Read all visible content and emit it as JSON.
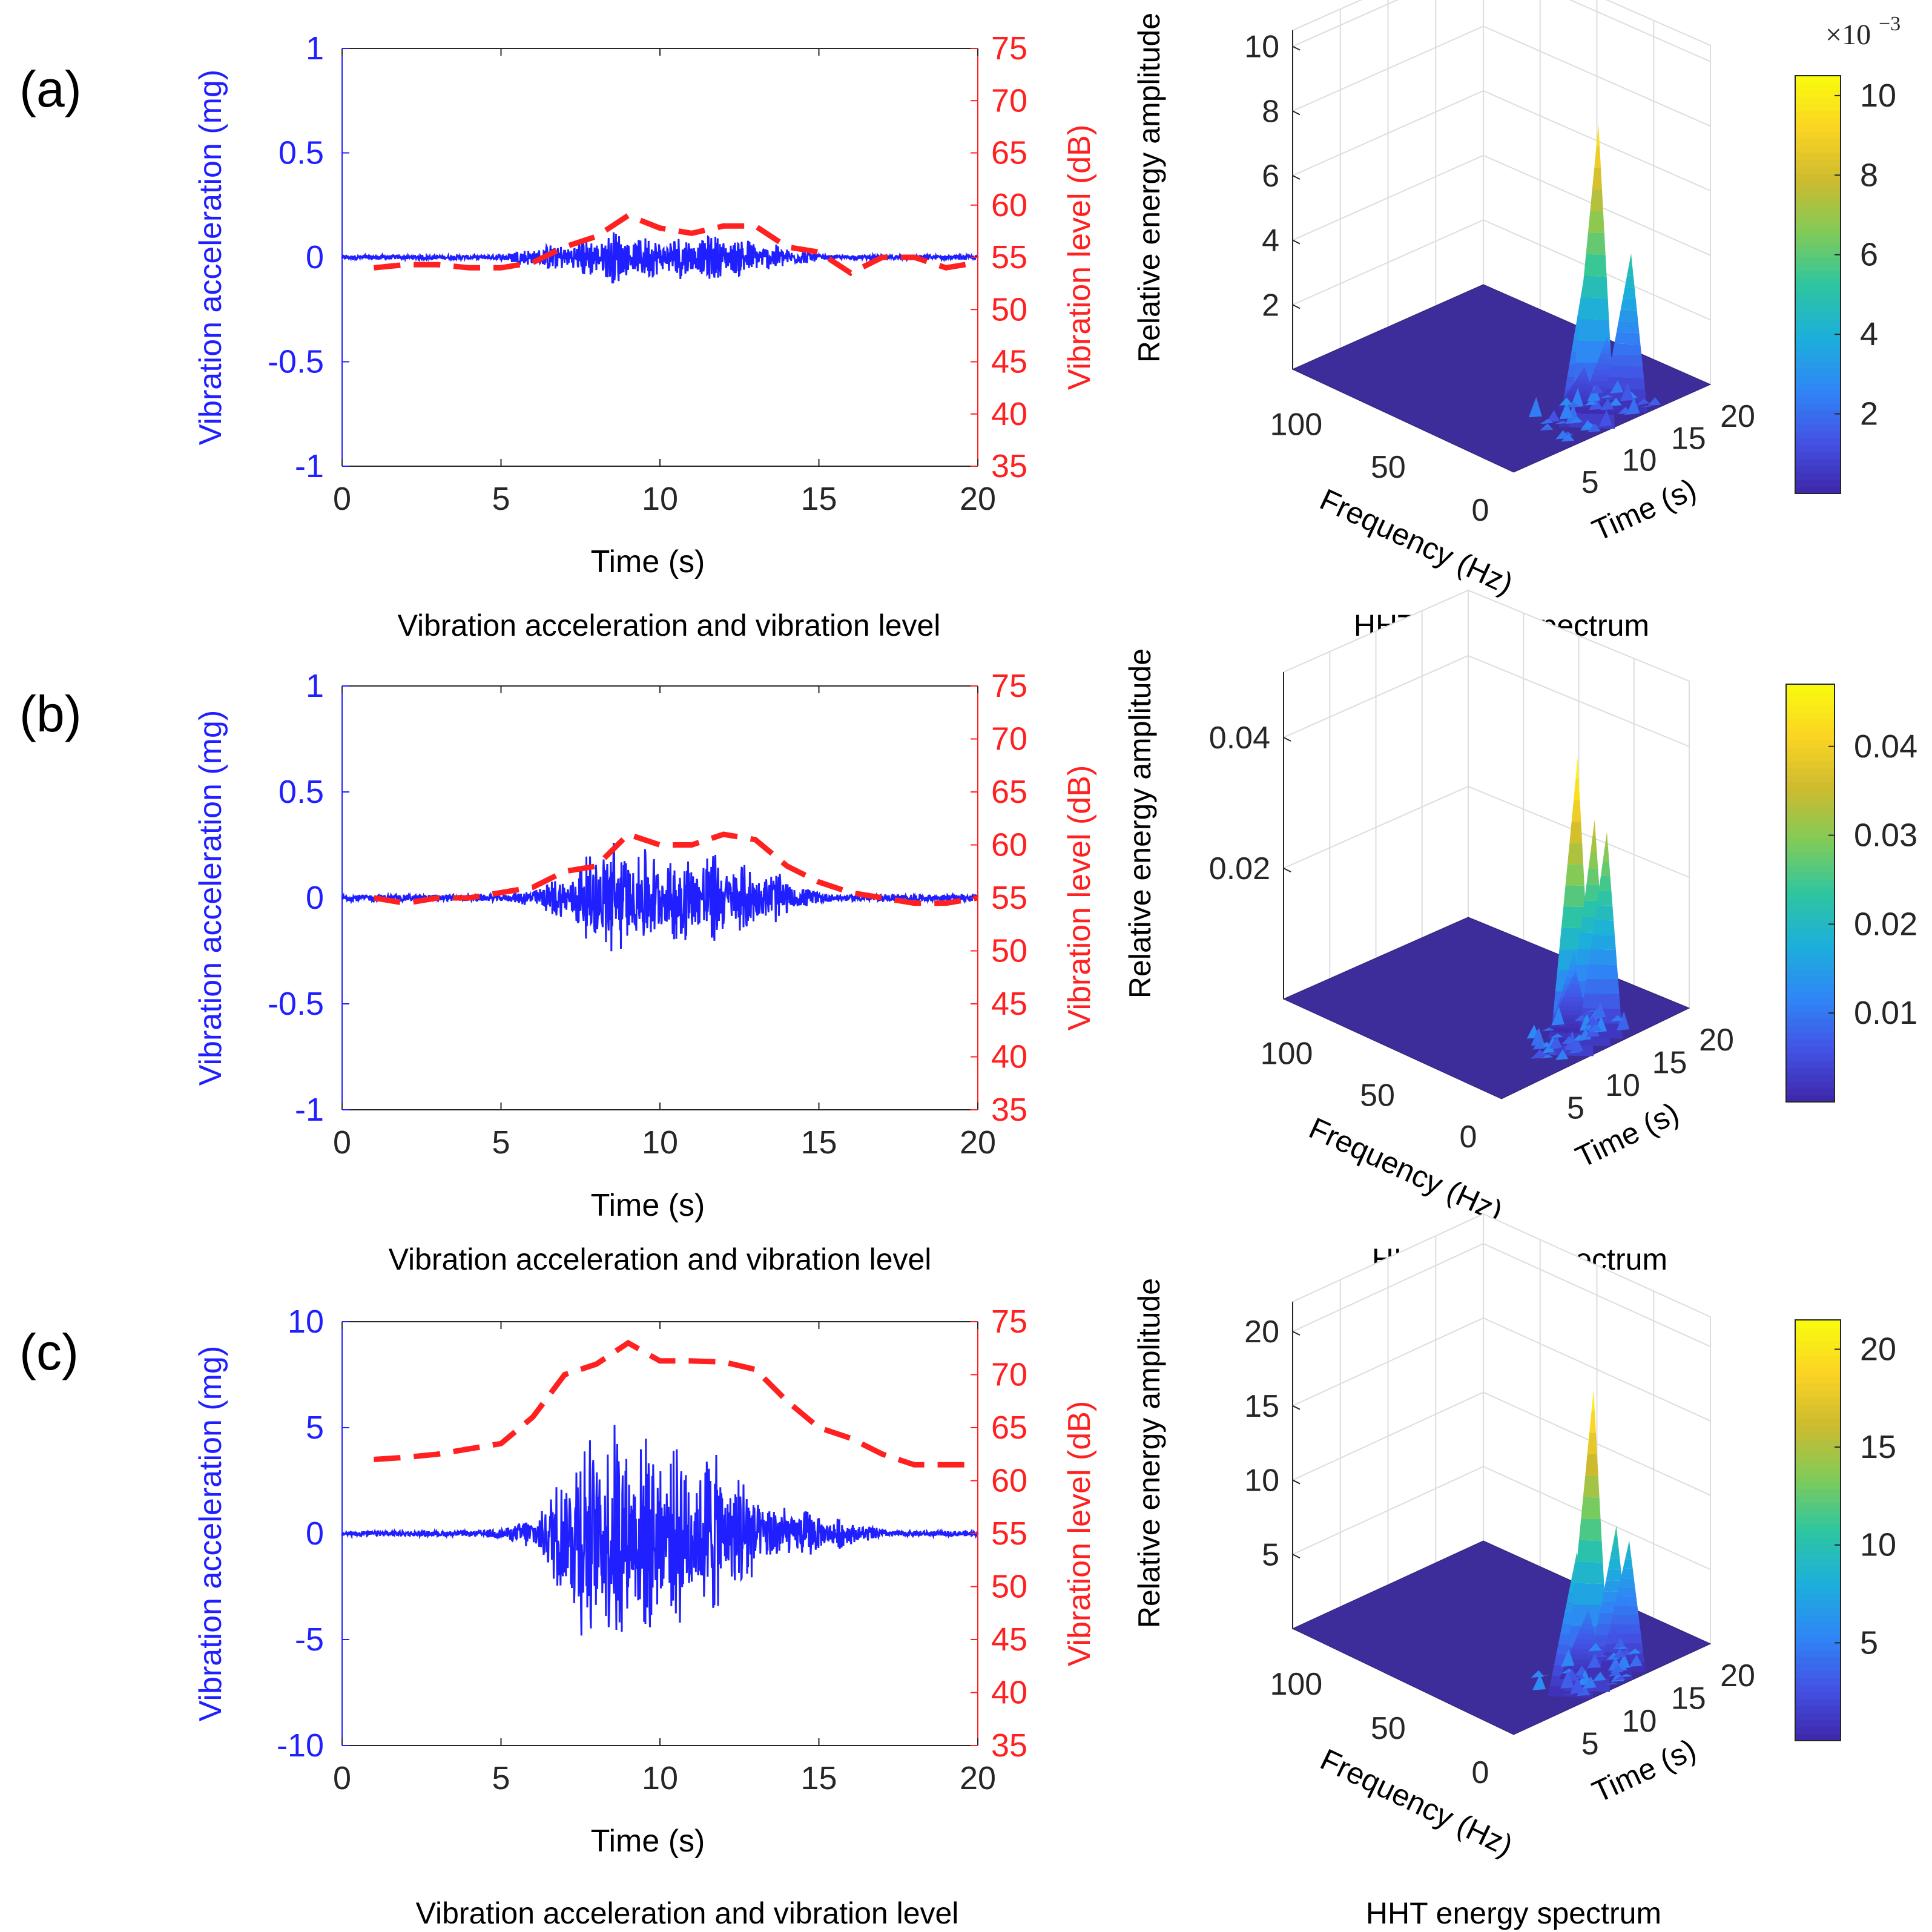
{
  "figure": {
    "background": "#ffffff",
    "colors": {
      "acceleration": "#1f1fff",
      "level": "#ff2020",
      "axis": "#262626",
      "grid": "#dddddd",
      "surface_base": "#3d2d9a",
      "colormap": [
        "#3e26a8",
        "#4352e5",
        "#2f86f6",
        "#1cafdb",
        "#2ec6a0",
        "#80cb58",
        "#cdbb2f",
        "#fbd424",
        "#f9fb0e"
      ]
    }
  },
  "panels": [
    {
      "label": "(a)",
      "line_caption": "Vibration acceleration and vibration level",
      "hht_caption": "HHT energy spectrum"
    },
    {
      "label": "(b)",
      "line_caption": "Vibration acceleration and vibration level",
      "hht_caption": "HHT energy spectrum"
    },
    {
      "label": "(c)",
      "line_caption": "Vibration acceleration and vibration level",
      "hht_caption": "HHT energy spectrum"
    }
  ],
  "chart_data": [
    {
      "type": "line",
      "panel": "(a)",
      "title": "Vibration acceleration and vibration level",
      "xlabel": "Time (s)",
      "ylabel_left": "Vibration acceleration (mg)",
      "ylabel_right": "Vibration level (dB)",
      "xlim": [
        0,
        20
      ],
      "ylim_left": [
        -1,
        1
      ],
      "ylim_right": [
        35,
        75
      ],
      "x_ticks": [
        0,
        5,
        10,
        15,
        20
      ],
      "y_ticks_left": [
        -1,
        -0.5,
        0,
        0.5,
        1
      ],
      "y_ticks_right": [
        35,
        40,
        45,
        50,
        55,
        60,
        65,
        70,
        75
      ],
      "grid": false,
      "series": [
        {
          "name": "Vibration acceleration",
          "axis": "left",
          "style": "solid",
          "noise_level": 0.01,
          "envelope": [
            [
              6,
              0.04
            ],
            [
              7.5,
              0.08
            ],
            [
              8.5,
              0.12
            ],
            [
              9.5,
              0.09
            ],
            [
              11.5,
              0.1
            ],
            [
              12.5,
              0.09
            ],
            [
              14,
              0.04
            ]
          ]
        },
        {
          "name": "Vibration level",
          "axis": "right",
          "style": "dashed",
          "x": [
            1,
            2,
            3,
            4,
            5,
            6,
            7,
            8,
            9,
            10,
            11,
            12,
            13,
            14,
            15,
            16,
            17,
            18,
            19,
            20
          ],
          "values": [
            54,
            54.3,
            54.3,
            54,
            54,
            54.5,
            56,
            57,
            59,
            57.8,
            57.3,
            58,
            58,
            56,
            55.5,
            53.5,
            55,
            55,
            54,
            54.5
          ]
        }
      ]
    },
    {
      "type": "line",
      "panel": "(b)",
      "title": "Vibration acceleration and vibration level",
      "xlabel": "Time (s)",
      "ylabel_left": "Vibration acceleration (mg)",
      "ylabel_right": "Vibration level (dB)",
      "xlim": [
        0,
        20
      ],
      "ylim_left": [
        -1,
        1
      ],
      "ylim_right": [
        35,
        75
      ],
      "x_ticks": [
        0,
        5,
        10,
        15,
        20
      ],
      "y_ticks_left": [
        -1,
        -0.5,
        0,
        0.5,
        1
      ],
      "y_ticks_right": [
        35,
        40,
        45,
        50,
        55,
        60,
        65,
        70,
        75
      ],
      "grid": false,
      "series": [
        {
          "name": "Vibration acceleration",
          "axis": "left",
          "style": "solid",
          "noise_level": 0.015,
          "envelope": [
            [
              6.5,
              0.06
            ],
            [
              7.5,
              0.15
            ],
            [
              8.3,
              0.3
            ],
            [
              9,
              0.24
            ],
            [
              10.2,
              0.2
            ],
            [
              11.5,
              0.22
            ],
            [
              12.5,
              0.15
            ],
            [
              13.8,
              0.1
            ],
            [
              14.3,
              0.04
            ]
          ]
        },
        {
          "name": "Vibration level",
          "axis": "right",
          "style": "dashed",
          "x": [
            1,
            2,
            3,
            4,
            5,
            6,
            7,
            8,
            9,
            10,
            11,
            12,
            13,
            14,
            15,
            16,
            17,
            18,
            19,
            20
          ],
          "values": [
            55,
            54.5,
            55,
            55,
            55.5,
            56,
            57.5,
            58,
            61,
            60,
            60,
            61,
            60.5,
            58,
            56.5,
            55.5,
            55,
            54.5,
            54.5,
            55
          ]
        }
      ]
    },
    {
      "type": "line",
      "panel": "(c)",
      "title": "Vibration acceleration and vibration level",
      "xlabel": "Time (s)",
      "ylabel_left": "Vibration acceleration (mg)",
      "ylabel_right": "Vibration level (dB)",
      "xlim": [
        0,
        20
      ],
      "ylim_left": [
        -10,
        10
      ],
      "ylim_right": [
        35,
        75
      ],
      "x_ticks": [
        0,
        5,
        10,
        15,
        20
      ],
      "y_ticks_left": [
        -10,
        -5,
        0,
        5,
        10
      ],
      "y_ticks_right": [
        35,
        40,
        45,
        50,
        55,
        60,
        65,
        70,
        75
      ],
      "grid": false,
      "series": [
        {
          "name": "Vibration acceleration",
          "axis": "left",
          "style": "solid",
          "noise_level": 0.12,
          "envelope": [
            [
              5.5,
              0.3
            ],
            [
              6.5,
              1.5
            ],
            [
              7.2,
              4.5
            ],
            [
              8.2,
              5.5
            ],
            [
              9,
              5
            ],
            [
              10,
              4.5
            ],
            [
              11.5,
              4
            ],
            [
              12.5,
              3
            ],
            [
              13.5,
              1.5
            ],
            [
              15,
              0.8
            ],
            [
              16,
              0.5
            ]
          ]
        },
        {
          "name": "Vibration level",
          "axis": "right",
          "style": "dashed",
          "x": [
            1,
            2,
            3,
            4,
            5,
            6,
            7,
            8,
            9,
            10,
            11,
            12,
            13,
            14,
            15,
            16,
            17,
            18,
            19,
            20
          ],
          "values": [
            62,
            62.2,
            62.5,
            63,
            63.5,
            66,
            70,
            71,
            73,
            71.3,
            71.3,
            71.2,
            70.5,
            67.5,
            65,
            64,
            62.5,
            61.5,
            61.5,
            61.5
          ]
        }
      ]
    },
    {
      "type": "surface3d",
      "panel": "(a)",
      "title": "HHT energy spectrum",
      "zlabel": "Relative energy amplitude",
      "xlabel": "Frequency (Hz)",
      "ylabel": "Time (s)",
      "z_scale_label": "×10",
      "z_scale_exponent": "−3",
      "z_ticks": [
        2,
        4,
        6,
        8,
        10
      ],
      "zlim": [
        0,
        10.5
      ],
      "x_ticks": [
        100,
        50,
        0
      ],
      "y_ticks": [
        5,
        10,
        15,
        20
      ],
      "colorbar_scale_label": "×10",
      "colorbar_scale_exponent": "−3",
      "colorbar_ticks": [
        2,
        4,
        6,
        8,
        10
      ],
      "colorbar_range": [
        0,
        10.5
      ],
      "peaks": [
        {
          "frequency": 2,
          "time": 9,
          "amplitude": 9.5
        },
        {
          "frequency": 5,
          "time": 8.5,
          "amplitude": 5.5
        },
        {
          "frequency": 3,
          "time": 12.5,
          "amplitude": 5
        },
        {
          "frequency": 8,
          "time": 11,
          "amplitude": 2.5
        },
        {
          "frequency": 15,
          "time": 10,
          "amplitude": 1.5
        }
      ]
    },
    {
      "type": "surface3d",
      "panel": "(b)",
      "title": "HHT energy spectrum",
      "zlabel": "Relative energy amplitude",
      "xlabel": "Frequency (Hz)",
      "ylabel": "Time (s)",
      "z_ticks": [
        0.02,
        0.04
      ],
      "zlim": [
        0,
        0.05
      ],
      "x_ticks": [
        100,
        50,
        0
      ],
      "y_ticks": [
        5,
        10,
        15,
        20
      ],
      "colorbar_ticks": [
        0.01,
        0.02,
        0.03,
        0.04
      ],
      "colorbar_range": [
        0,
        0.047
      ],
      "peaks": [
        {
          "frequency": 2,
          "time": 8.5,
          "amplitude": 0.046
        },
        {
          "frequency": 3,
          "time": 10.5,
          "amplitude": 0.035
        },
        {
          "frequency": 4,
          "time": 12,
          "amplitude": 0.032
        },
        {
          "frequency": 9,
          "time": 9.5,
          "amplitude": 0.015
        },
        {
          "frequency": 16,
          "time": 11,
          "amplitude": 0.01
        }
      ]
    },
    {
      "type": "surface3d",
      "panel": "(c)",
      "title": "HHT energy spectrum",
      "zlabel": "Relative energy amplitude",
      "xlabel": "Frequency (Hz)",
      "ylabel": "Time (s)",
      "z_ticks": [
        5,
        10,
        15,
        20
      ],
      "zlim": [
        0,
        22
      ],
      "x_ticks": [
        100,
        50,
        0
      ],
      "y_ticks": [
        5,
        10,
        15,
        20
      ],
      "colorbar_ticks": [
        5,
        10,
        15,
        20
      ],
      "colorbar_range": [
        0,
        21.5
      ],
      "peaks": [
        {
          "frequency": 2,
          "time": 8.5,
          "amplitude": 20.5
        },
        {
          "frequency": 3,
          "time": 7,
          "amplitude": 10
        },
        {
          "frequency": 3,
          "time": 11,
          "amplitude": 10.5
        },
        {
          "frequency": 4,
          "time": 12.5,
          "amplitude": 9
        },
        {
          "frequency": 10,
          "time": 9.5,
          "amplitude": 5
        }
      ]
    }
  ]
}
